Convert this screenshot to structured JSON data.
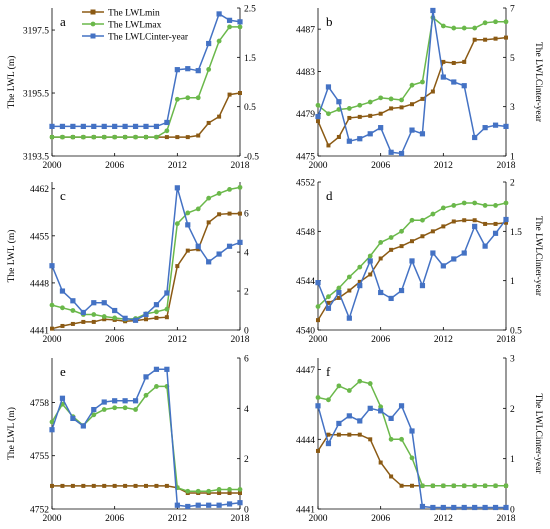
{
  "colors": {
    "min": "#8B5A14",
    "max": "#6AB84A",
    "inter": "#4472C4",
    "inter_f": "#5BA8DC"
  },
  "legend": [
    "The LWLmin",
    "The LWLmax",
    "The LWLCinter-year"
  ],
  "chart_data": [
    {
      "type": "line",
      "panel_label": "a",
      "xlabel": "",
      "ylabel": "The LWL (m)",
      "y2label": "",
      "xlim": [
        2000,
        2018
      ],
      "xticks": [
        2000,
        2006,
        2012,
        2018
      ],
      "ylim": [
        3193.5,
        3198.2
      ],
      "yticks": [
        3193.5,
        3195.5,
        3197.5
      ],
      "y2lim": [
        -0.5,
        2.5
      ],
      "y2ticks": [
        -0.5,
        0.5,
        1.5,
        2.5
      ],
      "series": [
        {
          "name": "The LWLmin",
          "axis": "left",
          "x": [
            2000,
            2001,
            2002,
            2003,
            2004,
            2005,
            2006,
            2007,
            2008,
            2009,
            2010,
            2011,
            2012,
            2013,
            2014,
            2015,
            2016,
            2017,
            2018
          ],
          "values": [
            3194.1,
            3194.1,
            3194.1,
            3194.1,
            3194.1,
            3194.1,
            3194.1,
            3194.1,
            3194.1,
            3194.1,
            3194.1,
            3194.1,
            3194.1,
            3194.1,
            3194.15,
            3194.55,
            3194.75,
            3195.45,
            3195.5
          ]
        },
        {
          "name": "The LWLmax",
          "axis": "left",
          "x": [
            2000,
            2001,
            2002,
            2003,
            2004,
            2005,
            2006,
            2007,
            2008,
            2009,
            2010,
            2011,
            2012,
            2013,
            2014,
            2015,
            2016,
            2017,
            2018
          ],
          "values": [
            3194.1,
            3194.1,
            3194.1,
            3194.1,
            3194.1,
            3194.1,
            3194.1,
            3194.1,
            3194.1,
            3194.1,
            3194.1,
            3194.3,
            3195.3,
            3195.35,
            3195.35,
            3196.25,
            3197.15,
            3197.6,
            3197.6
          ]
        },
        {
          "name": "The LWLCinter-year",
          "axis": "right",
          "x": [
            2000,
            2001,
            2002,
            2003,
            2004,
            2005,
            2006,
            2007,
            2008,
            2009,
            2010,
            2011,
            2012,
            2013,
            2014,
            2015,
            2016,
            2017,
            2018
          ],
          "values": [
            0.1,
            0.1,
            0.1,
            0.1,
            0.1,
            0.1,
            0.1,
            0.1,
            0.1,
            0.1,
            0.1,
            0.18,
            1.25,
            1.27,
            1.23,
            1.78,
            2.38,
            2.25,
            2.22
          ]
        }
      ]
    },
    {
      "type": "line",
      "panel_label": "b",
      "xlabel": "",
      "ylabel": "",
      "y2label": "The LWLCinter-year",
      "xlim": [
        2000,
        2018
      ],
      "xticks": [
        2000,
        2006,
        2012,
        2018
      ],
      "ylim": [
        4475,
        4489
      ],
      "yticks": [
        4475,
        4479,
        4483,
        4487
      ],
      "y2lim": [
        1,
        7
      ],
      "y2ticks": [
        1,
        3,
        5,
        7
      ],
      "series": [
        {
          "name": "The LWLmin",
          "axis": "left",
          "x": [
            2000,
            2001,
            2002,
            2003,
            2004,
            2005,
            2006,
            2007,
            2008,
            2009,
            2010,
            2011,
            2012,
            2013,
            2014,
            2015,
            2016,
            2017,
            2018
          ],
          "values": [
            4478.3,
            4476.0,
            4476.8,
            4478.6,
            4478.7,
            4478.8,
            4479.0,
            4479.5,
            4479.6,
            4479.9,
            4480.4,
            4481.1,
            4483.9,
            4483.8,
            4483.9,
            4486.0,
            4486.0,
            4486.1,
            4486.2
          ]
        },
        {
          "name": "The LWLmax",
          "axis": "left",
          "x": [
            2000,
            2001,
            2002,
            2003,
            2004,
            2005,
            2006,
            2007,
            2008,
            2009,
            2010,
            2011,
            2012,
            2013,
            2014,
            2015,
            2016,
            2017,
            2018
          ],
          "values": [
            4479.8,
            4479.0,
            4479.4,
            4479.5,
            4479.8,
            4480.1,
            4480.5,
            4480.4,
            4480.3,
            4481.7,
            4482.0,
            4488.1,
            4487.3,
            4487.1,
            4487.1,
            4487.1,
            4487.6,
            4487.7,
            4487.7
          ]
        },
        {
          "name": "The LWLCinter-year",
          "axis": "right",
          "x": [
            2000,
            2001,
            2002,
            2003,
            2004,
            2005,
            2006,
            2007,
            2008,
            2009,
            2010,
            2011,
            2012,
            2013,
            2014,
            2015,
            2016,
            2017,
            2018
          ],
          "values": [
            2.6,
            3.8,
            3.2,
            1.6,
            1.7,
            1.9,
            2.15,
            1.15,
            1.1,
            2.05,
            1.9,
            6.9,
            4.2,
            4.0,
            3.85,
            1.75,
            2.15,
            2.25,
            2.2
          ]
        }
      ]
    },
    {
      "type": "line",
      "panel_label": "c",
      "xlabel": "",
      "ylabel": "The LWL (m)",
      "y2label": "",
      "xlim": [
        2000,
        2018
      ],
      "xticks": [
        2000,
        2006,
        2012,
        2018
      ],
      "ylim": [
        4441,
        4463
      ],
      "yticks": [
        4441,
        4448,
        4455,
        4462
      ],
      "y2lim": [
        0,
        7.6
      ],
      "y2ticks": [
        0,
        2,
        4,
        6
      ],
      "series": [
        {
          "name": "The LWLmin",
          "axis": "left",
          "x": [
            2000,
            2001,
            2002,
            2003,
            2004,
            2005,
            2006,
            2007,
            2008,
            2009,
            2010,
            2011,
            2012,
            2013,
            2014,
            2015,
            2016,
            2017,
            2018
          ],
          "values": [
            4441.2,
            4441.6,
            4441.9,
            4442.2,
            4442.2,
            4442.6,
            4442.5,
            4442.3,
            4442.4,
            4442.6,
            4442.8,
            4442.9,
            4450.5,
            4452.8,
            4453.0,
            4457.0,
            4458.2,
            4458.3,
            4458.3
          ]
        },
        {
          "name": "The LWLmax",
          "axis": "left",
          "x": [
            2000,
            2001,
            2002,
            2003,
            2004,
            2005,
            2006,
            2007,
            2008,
            2009,
            2010,
            2011,
            2012,
            2013,
            2014,
            2015,
            2016,
            2017,
            2018
          ],
          "values": [
            4444.7,
            4444.3,
            4443.9,
            4443.3,
            4443.3,
            4443.0,
            4442.8,
            4442.6,
            4442.7,
            4443.4,
            4443.7,
            4444.1,
            4456.8,
            4458.4,
            4459.0,
            4460.6,
            4461.3,
            4461.9,
            4462.2
          ]
        },
        {
          "name": "The LWLCinter-year",
          "axis": "right",
          "x": [
            2000,
            2001,
            2002,
            2003,
            2004,
            2005,
            2006,
            2007,
            2008,
            2009,
            2010,
            2011,
            2012,
            2013,
            2014,
            2015,
            2016,
            2017,
            2018
          ],
          "values": [
            3.3,
            2.0,
            1.5,
            0.9,
            1.4,
            1.4,
            1.0,
            0.6,
            0.5,
            0.8,
            1.3,
            1.9,
            7.3,
            5.4,
            4.3,
            3.5,
            3.9,
            4.3,
            4.5
          ]
        }
      ]
    },
    {
      "type": "line",
      "panel_label": "d",
      "xlabel": "",
      "ylabel": "",
      "y2label": "The LWLCinter-year",
      "xlim": [
        2000,
        2018
      ],
      "xticks": [
        2000,
        2006,
        2012,
        2018
      ],
      "ylim": [
        4540,
        4552
      ],
      "yticks": [
        4540,
        4544,
        4548,
        4552
      ],
      "y2lim": [
        0.5,
        2
      ],
      "y2ticks": [
        0.5,
        1,
        1.5,
        2
      ],
      "series": [
        {
          "name": "The LWLmin",
          "axis": "left",
          "x": [
            2000,
            2001,
            2002,
            2003,
            2004,
            2005,
            2006,
            2007,
            2008,
            2009,
            2010,
            2011,
            2012,
            2013,
            2014,
            2015,
            2016,
            2017,
            2018
          ],
          "values": [
            4540.8,
            4542.2,
            4542.6,
            4543.2,
            4543.9,
            4544.5,
            4545.8,
            4546.5,
            4546.8,
            4547.2,
            4547.6,
            4548.0,
            4548.4,
            4548.8,
            4548.9,
            4548.9,
            4548.6,
            4548.6,
            4548.7
          ]
        },
        {
          "name": "The LWLmax",
          "axis": "left",
          "x": [
            2000,
            2001,
            2002,
            2003,
            2004,
            2005,
            2006,
            2007,
            2008,
            2009,
            2010,
            2011,
            2012,
            2013,
            2014,
            2015,
            2016,
            2017,
            2018
          ],
          "values": [
            4541.9,
            4542.7,
            4543.4,
            4544.3,
            4545.1,
            4546.0,
            4547.1,
            4547.5,
            4548.0,
            4548.9,
            4548.9,
            4549.4,
            4549.9,
            4550.1,
            4550.3,
            4550.3,
            4550.1,
            4550.1,
            4550.3
          ]
        },
        {
          "name": "The LWLCinter-year",
          "axis": "right",
          "x": [
            2000,
            2001,
            2002,
            2003,
            2004,
            2005,
            2006,
            2007,
            2008,
            2009,
            2010,
            2011,
            2012,
            2013,
            2014,
            2015,
            2016,
            2017,
            2018
          ],
          "values": [
            0.98,
            0.72,
            0.88,
            0.62,
            0.95,
            1.2,
            0.88,
            0.82,
            0.9,
            1.2,
            0.95,
            1.28,
            1.15,
            1.22,
            1.28,
            1.55,
            1.35,
            1.48,
            1.62
          ]
        }
      ]
    },
    {
      "type": "line",
      "panel_label": "e",
      "xlabel": "",
      "ylabel": "The LWL (m)",
      "y2label": "",
      "xlim": [
        2000,
        2018
      ],
      "xticks": [
        2000,
        2006,
        2012,
        2018
      ],
      "ylim": [
        4752,
        4760.5
      ],
      "yticks": [
        4752,
        4755,
        4758
      ],
      "y2lim": [
        0,
        6
      ],
      "y2ticks": [
        0,
        2,
        4,
        6
      ],
      "series": [
        {
          "name": "The LWLmin",
          "axis": "left",
          "x": [
            2000,
            2001,
            2002,
            2003,
            2004,
            2005,
            2006,
            2007,
            2008,
            2009,
            2010,
            2011,
            2012,
            2013,
            2014,
            2015,
            2016,
            2017,
            2018
          ],
          "values": [
            4753.3,
            4753.3,
            4753.3,
            4753.3,
            4753.3,
            4753.3,
            4753.3,
            4753.3,
            4753.3,
            4753.3,
            4753.3,
            4753.3,
            4753.2,
            4752.9,
            4752.9,
            4752.9,
            4752.9,
            4752.9,
            4752.9
          ]
        },
        {
          "name": "The LWLmax",
          "axis": "left",
          "x": [
            2000,
            2001,
            2002,
            2003,
            2004,
            2005,
            2006,
            2007,
            2008,
            2009,
            2010,
            2011,
            2012,
            2013,
            2014,
            2015,
            2016,
            2017,
            2018
          ],
          "values": [
            4756.9,
            4757.9,
            4757.2,
            4756.7,
            4757.3,
            4757.6,
            4757.7,
            4757.7,
            4757.6,
            4758.4,
            4758.9,
            4758.9,
            4753.2,
            4753.0,
            4753.0,
            4753.0,
            4753.1,
            4753.1,
            4753.1
          ]
        },
        {
          "name": "The LWLCinter-year",
          "axis": "right",
          "x": [
            2000,
            2001,
            2002,
            2003,
            2004,
            2005,
            2006,
            2007,
            2008,
            2009,
            2010,
            2011,
            2012,
            2013,
            2014,
            2015,
            2016,
            2017,
            2018
          ],
          "values": [
            3.15,
            4.4,
            3.6,
            3.3,
            3.95,
            4.25,
            4.3,
            4.3,
            4.3,
            5.25,
            5.55,
            5.55,
            0.15,
            0.1,
            0.15,
            0.15,
            0.15,
            0.2,
            0.25
          ]
        }
      ]
    },
    {
      "type": "line",
      "panel_label": "f",
      "xlabel": "",
      "ylabel": "",
      "y2label": "The LWLCinter-year",
      "xlim": [
        2000,
        2018
      ],
      "xticks": [
        2000,
        2006,
        2012,
        2018
      ],
      "ylim": [
        4441,
        4447.5
      ],
      "yticks": [
        4441,
        4444,
        4447
      ],
      "y2lim": [
        0,
        3
      ],
      "y2ticks": [
        0,
        1,
        2,
        3
      ],
      "series": [
        {
          "name": "The LWLmin",
          "axis": "left",
          "x": [
            2000,
            2001,
            2002,
            2003,
            2004,
            2005,
            2006,
            2007,
            2008,
            2009,
            2010,
            2011,
            2012,
            2013,
            2014,
            2015,
            2016,
            2017,
            2018
          ],
          "values": [
            4443.5,
            4444.2,
            4444.2,
            4444.2,
            4444.2,
            4444.0,
            4443.0,
            4442.4,
            4442.0,
            4442.0,
            4442.0,
            4442.0,
            4442.0,
            4442.0,
            4442.0,
            4442.0,
            4442.0,
            4442.0,
            4442.0
          ]
        },
        {
          "name": "The LWLmax",
          "axis": "left",
          "x": [
            2000,
            2001,
            2002,
            2003,
            2004,
            2005,
            2006,
            2007,
            2008,
            2009,
            2010,
            2011,
            2012,
            2013,
            2014,
            2015,
            2016,
            2017,
            2018
          ],
          "values": [
            4445.8,
            4445.7,
            4446.3,
            4446.1,
            4446.5,
            4446.4,
            4445.4,
            4444.0,
            4444.0,
            4443.2,
            4442.0,
            4442.0,
            4442.0,
            4442.0,
            4442.0,
            4442.0,
            4442.0,
            4442.0,
            4442.0
          ]
        },
        {
          "name": "The LWLCinter-year",
          "axis": "right",
          "x": [
            2000,
            2001,
            2002,
            2003,
            2004,
            2005,
            2006,
            2007,
            2008,
            2009,
            2010,
            2011,
            2012,
            2013,
            2014,
            2015,
            2016,
            2017,
            2018
          ],
          "values": [
            2.05,
            1.3,
            1.7,
            1.85,
            1.75,
            2.0,
            1.95,
            1.8,
            2.05,
            1.55,
            0.05,
            0.03,
            0.03,
            0.03,
            0.03,
            0.03,
            0.03,
            0.03,
            0.03
          ]
        }
      ]
    }
  ]
}
